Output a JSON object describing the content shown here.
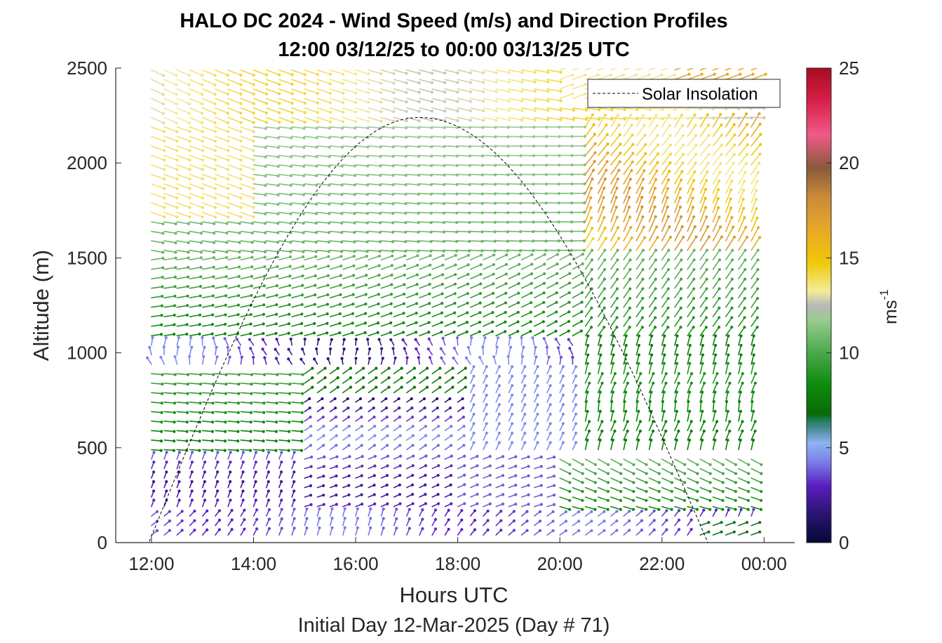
{
  "chart_data": {
    "type": "quiver-profile",
    "title": "HALO DC 2024 - Wind Speed (m/s) and Direction Profiles",
    "subtitle": "12:00 03/12/25 to 00:00 03/13/25  UTC",
    "xlabel": "Hours UTC",
    "xlabel2": "Initial Day 12-Mar-2025 (Day # 71)",
    "ylabel": "Altitude (m)",
    "x_ticks": [
      "12:00",
      "14:00",
      "16:00",
      "18:00",
      "20:00",
      "22:00",
      "00:00"
    ],
    "x_tick_hours": [
      12,
      14,
      16,
      18,
      20,
      22,
      24
    ],
    "xlim_hours": [
      11.3,
      24.6
    ],
    "y_ticks": [
      "0",
      "500",
      "1000",
      "1500",
      "2000",
      "2500"
    ],
    "ylim": [
      0,
      2500
    ],
    "colorbar": {
      "label": "ms",
      "label_exponent": "-1",
      "ticks": [
        "0",
        "5",
        "10",
        "15",
        "20",
        "25"
      ],
      "range": [
        0,
        25
      ]
    },
    "legend": {
      "entries": [
        "Solar Insolation"
      ],
      "placement": "top-right"
    },
    "solar_insolation": {
      "sunrise_hour": 11.95,
      "peak_hour": 17.25,
      "sunset_hour": 22.9,
      "peak_altitude": 2240
    },
    "wind_field": {
      "time_start_hour": 12.0,
      "time_end_hour": 24.0,
      "time_step_hours": 0.25,
      "altitude_start": 40,
      "altitude_end": 2500,
      "altitude_step": 50,
      "speed_regions": [
        {
          "layer": "0-150 m",
          "speed_ms": 3.5,
          "direction": "from SW/W"
        },
        {
          "layer": "150-450 m",
          "speed_ms": 3.0,
          "direction": "from SW"
        },
        {
          "layer": "450-900 m (before 18:00)",
          "speed_ms": 7.5,
          "direction": "from W"
        },
        {
          "layer": "900-1050 m",
          "speed_ms": 3.0,
          "direction": "from NW"
        },
        {
          "layer": "1100-1500 m",
          "speed_ms": 8.5,
          "direction": "from W"
        },
        {
          "layer": "1500-2200 m",
          "speed_ms": 11.0,
          "direction": "from WNW"
        },
        {
          "layer": "2200-2500 m",
          "speed_ms": 14.0,
          "direction": "from W"
        },
        {
          "layer": "1500-2300 m after 21:00",
          "speed_ms": 17.0,
          "direction": "from SW"
        }
      ]
    }
  }
}
